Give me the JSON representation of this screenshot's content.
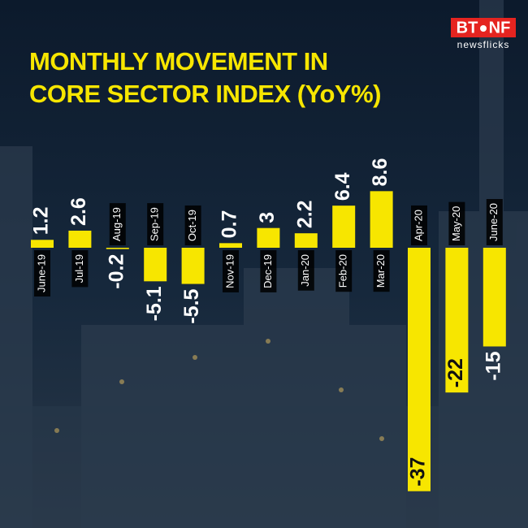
{
  "branding": {
    "logo": [
      "BT",
      "NF"
    ],
    "tagline": "newsflicks"
  },
  "chart_data": {
    "type": "bar",
    "title": [
      "MONTHLY MOVEMENT IN",
      "CORE SECTOR INDEX (YoY%)"
    ],
    "categories": [
      "June-19",
      "Jul-19",
      "Aug-19",
      "Sep-19",
      "Oct-19",
      "Nov-19",
      "Dec-19",
      "Jan-20",
      "Feb-20",
      "Mar-20",
      "Apr-20",
      "May-20",
      "June-20"
    ],
    "values": [
      1.2,
      2.6,
      -0.2,
      -5.1,
      -5.5,
      0.7,
      3,
      2.2,
      6.4,
      8.6,
      -37,
      -22,
      -15
    ],
    "color": "#f7e600"
  }
}
